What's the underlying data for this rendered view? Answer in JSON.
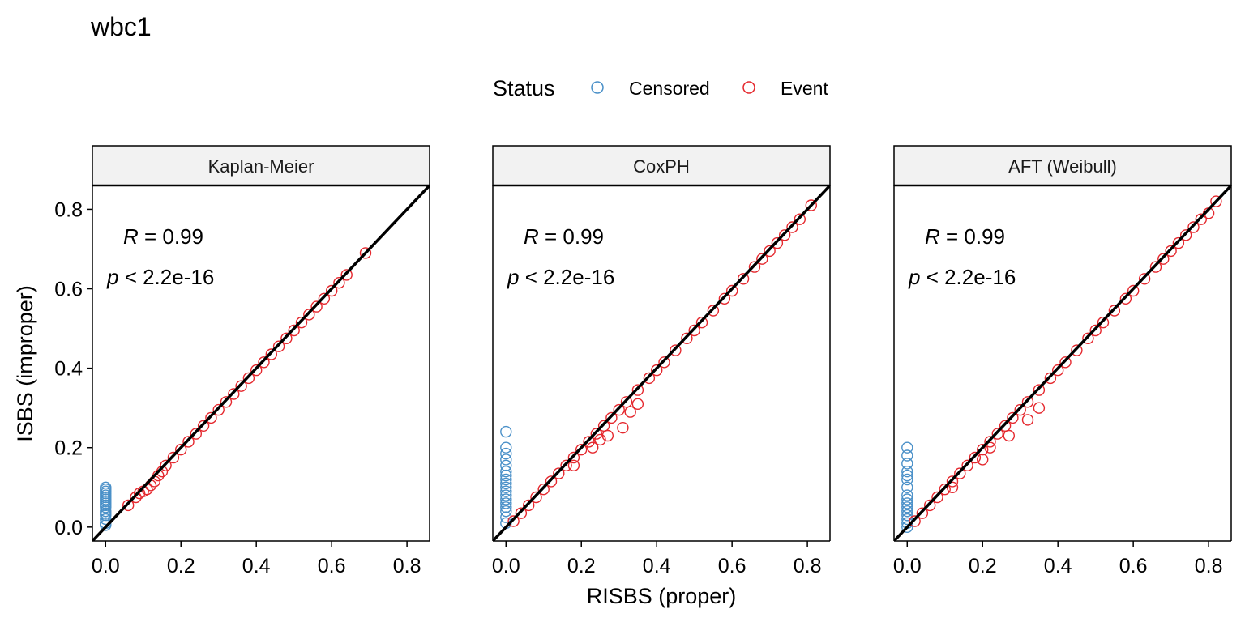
{
  "title": "wbc1",
  "legend": {
    "title": "Status",
    "items": [
      {
        "label": "Censored",
        "color": "#4a90c8"
      },
      {
        "label": "Event",
        "color": "#e5282e"
      }
    ],
    "placement": "top"
  },
  "axes": {
    "xlabel": "RISBS (proper)",
    "ylabel": "ISBS (improper)",
    "xlim": [
      -0.035,
      0.86
    ],
    "ylim": [
      -0.035,
      0.86
    ],
    "x_ticks": [
      "0.0",
      "0.2",
      "0.4",
      "0.6",
      "0.8"
    ],
    "y_ticks": [
      "0.0",
      "0.2",
      "0.4",
      "0.6",
      "0.8"
    ]
  },
  "chart_data": [
    {
      "type": "scatter",
      "panel": "Kaplan-Meier",
      "annotation": {
        "r_label": "R",
        "r_value": " = 0.99",
        "p_label": "p",
        "p_value": " < 2.2e-16"
      },
      "reference_line": "y = x",
      "series": [
        {
          "name": "Censored",
          "x": [
            0,
            0,
            0,
            0,
            0,
            0,
            0,
            0,
            0,
            0,
            0,
            0,
            0,
            0,
            0,
            0,
            0
          ],
          "y": [
            0.005,
            0.01,
            0.02,
            0.03,
            0.035,
            0.04,
            0.05,
            0.055,
            0.06,
            0.065,
            0.07,
            0.075,
            0.08,
            0.085,
            0.09,
            0.095,
            0.1
          ]
        },
        {
          "name": "Event",
          "x": [
            0.06,
            0.08,
            0.09,
            0.1,
            0.11,
            0.12,
            0.13,
            0.14,
            0.15,
            0.16,
            0.18,
            0.2,
            0.22,
            0.24,
            0.26,
            0.28,
            0.3,
            0.32,
            0.34,
            0.36,
            0.38,
            0.4,
            0.42,
            0.44,
            0.46,
            0.48,
            0.5,
            0.52,
            0.54,
            0.56,
            0.58,
            0.6,
            0.62,
            0.64,
            0.69
          ],
          "y": [
            0.055,
            0.075,
            0.085,
            0.09,
            0.095,
            0.105,
            0.115,
            0.13,
            0.14,
            0.155,
            0.175,
            0.195,
            0.215,
            0.235,
            0.255,
            0.275,
            0.295,
            0.315,
            0.335,
            0.355,
            0.375,
            0.395,
            0.415,
            0.435,
            0.455,
            0.475,
            0.495,
            0.515,
            0.535,
            0.555,
            0.575,
            0.595,
            0.615,
            0.635,
            0.69
          ]
        }
      ]
    },
    {
      "type": "scatter",
      "panel": "CoxPH",
      "annotation": {
        "r_label": "R",
        "r_value": " = 0.99",
        "p_label": "p",
        "p_value": " < 2.2e-16"
      },
      "reference_line": "y = x",
      "series": [
        {
          "name": "Censored",
          "x": [
            0,
            0,
            0,
            0,
            0,
            0,
            0,
            0,
            0,
            0,
            0,
            0,
            0,
            0,
            0,
            0,
            0,
            0
          ],
          "y": [
            0.01,
            0.025,
            0.04,
            0.05,
            0.06,
            0.07,
            0.08,
            0.09,
            0.1,
            0.11,
            0.12,
            0.13,
            0.14,
            0.155,
            0.17,
            0.185,
            0.2,
            0.24
          ]
        },
        {
          "name": "Event",
          "x": [
            0.02,
            0.04,
            0.06,
            0.08,
            0.1,
            0.12,
            0.14,
            0.16,
            0.18,
            0.2,
            0.22,
            0.24,
            0.26,
            0.28,
            0.3,
            0.32,
            0.35,
            0.38,
            0.4,
            0.42,
            0.45,
            0.48,
            0.5,
            0.52,
            0.55,
            0.58,
            0.6,
            0.63,
            0.66,
            0.68,
            0.7,
            0.72,
            0.74,
            0.76,
            0.78,
            0.81,
            0.23,
            0.27,
            0.31,
            0.33,
            0.35,
            0.18,
            0.25
          ],
          "y": [
            0.015,
            0.035,
            0.055,
            0.075,
            0.095,
            0.115,
            0.135,
            0.155,
            0.175,
            0.195,
            0.215,
            0.235,
            0.255,
            0.275,
            0.295,
            0.315,
            0.345,
            0.375,
            0.395,
            0.415,
            0.445,
            0.475,
            0.495,
            0.515,
            0.545,
            0.575,
            0.595,
            0.625,
            0.655,
            0.675,
            0.695,
            0.715,
            0.735,
            0.755,
            0.775,
            0.81,
            0.2,
            0.23,
            0.25,
            0.29,
            0.31,
            0.155,
            0.22
          ]
        }
      ]
    },
    {
      "type": "scatter",
      "panel": "AFT (Weibull)",
      "annotation": {
        "r_label": "R",
        "r_value": " = 0.99",
        "p_label": "p",
        "p_value": " < 2.2e-16"
      },
      "reference_line": "y = x",
      "series": [
        {
          "name": "Censored",
          "x": [
            0,
            0,
            0,
            0,
            0,
            0,
            0,
            0,
            0,
            0,
            0,
            0,
            0,
            0,
            0,
            0
          ],
          "y": [
            0.0,
            0.01,
            0.02,
            0.03,
            0.04,
            0.05,
            0.06,
            0.07,
            0.08,
            0.1,
            0.12,
            0.13,
            0.14,
            0.16,
            0.18,
            0.2
          ]
        },
        {
          "name": "Event",
          "x": [
            0.02,
            0.04,
            0.06,
            0.08,
            0.1,
            0.12,
            0.14,
            0.16,
            0.18,
            0.2,
            0.22,
            0.24,
            0.26,
            0.28,
            0.3,
            0.32,
            0.35,
            0.38,
            0.4,
            0.42,
            0.45,
            0.48,
            0.5,
            0.52,
            0.55,
            0.58,
            0.6,
            0.63,
            0.66,
            0.68,
            0.7,
            0.72,
            0.74,
            0.76,
            0.78,
            0.8,
            0.82,
            0.22,
            0.27,
            0.32,
            0.35,
            0.2,
            0.12
          ],
          "y": [
            0.015,
            0.035,
            0.055,
            0.075,
            0.095,
            0.115,
            0.135,
            0.155,
            0.175,
            0.195,
            0.215,
            0.235,
            0.255,
            0.275,
            0.295,
            0.315,
            0.345,
            0.375,
            0.395,
            0.415,
            0.445,
            0.475,
            0.495,
            0.515,
            0.545,
            0.575,
            0.595,
            0.625,
            0.655,
            0.675,
            0.695,
            0.715,
            0.735,
            0.755,
            0.775,
            0.79,
            0.82,
            0.2,
            0.23,
            0.27,
            0.3,
            0.17,
            0.1
          ]
        }
      ]
    }
  ]
}
